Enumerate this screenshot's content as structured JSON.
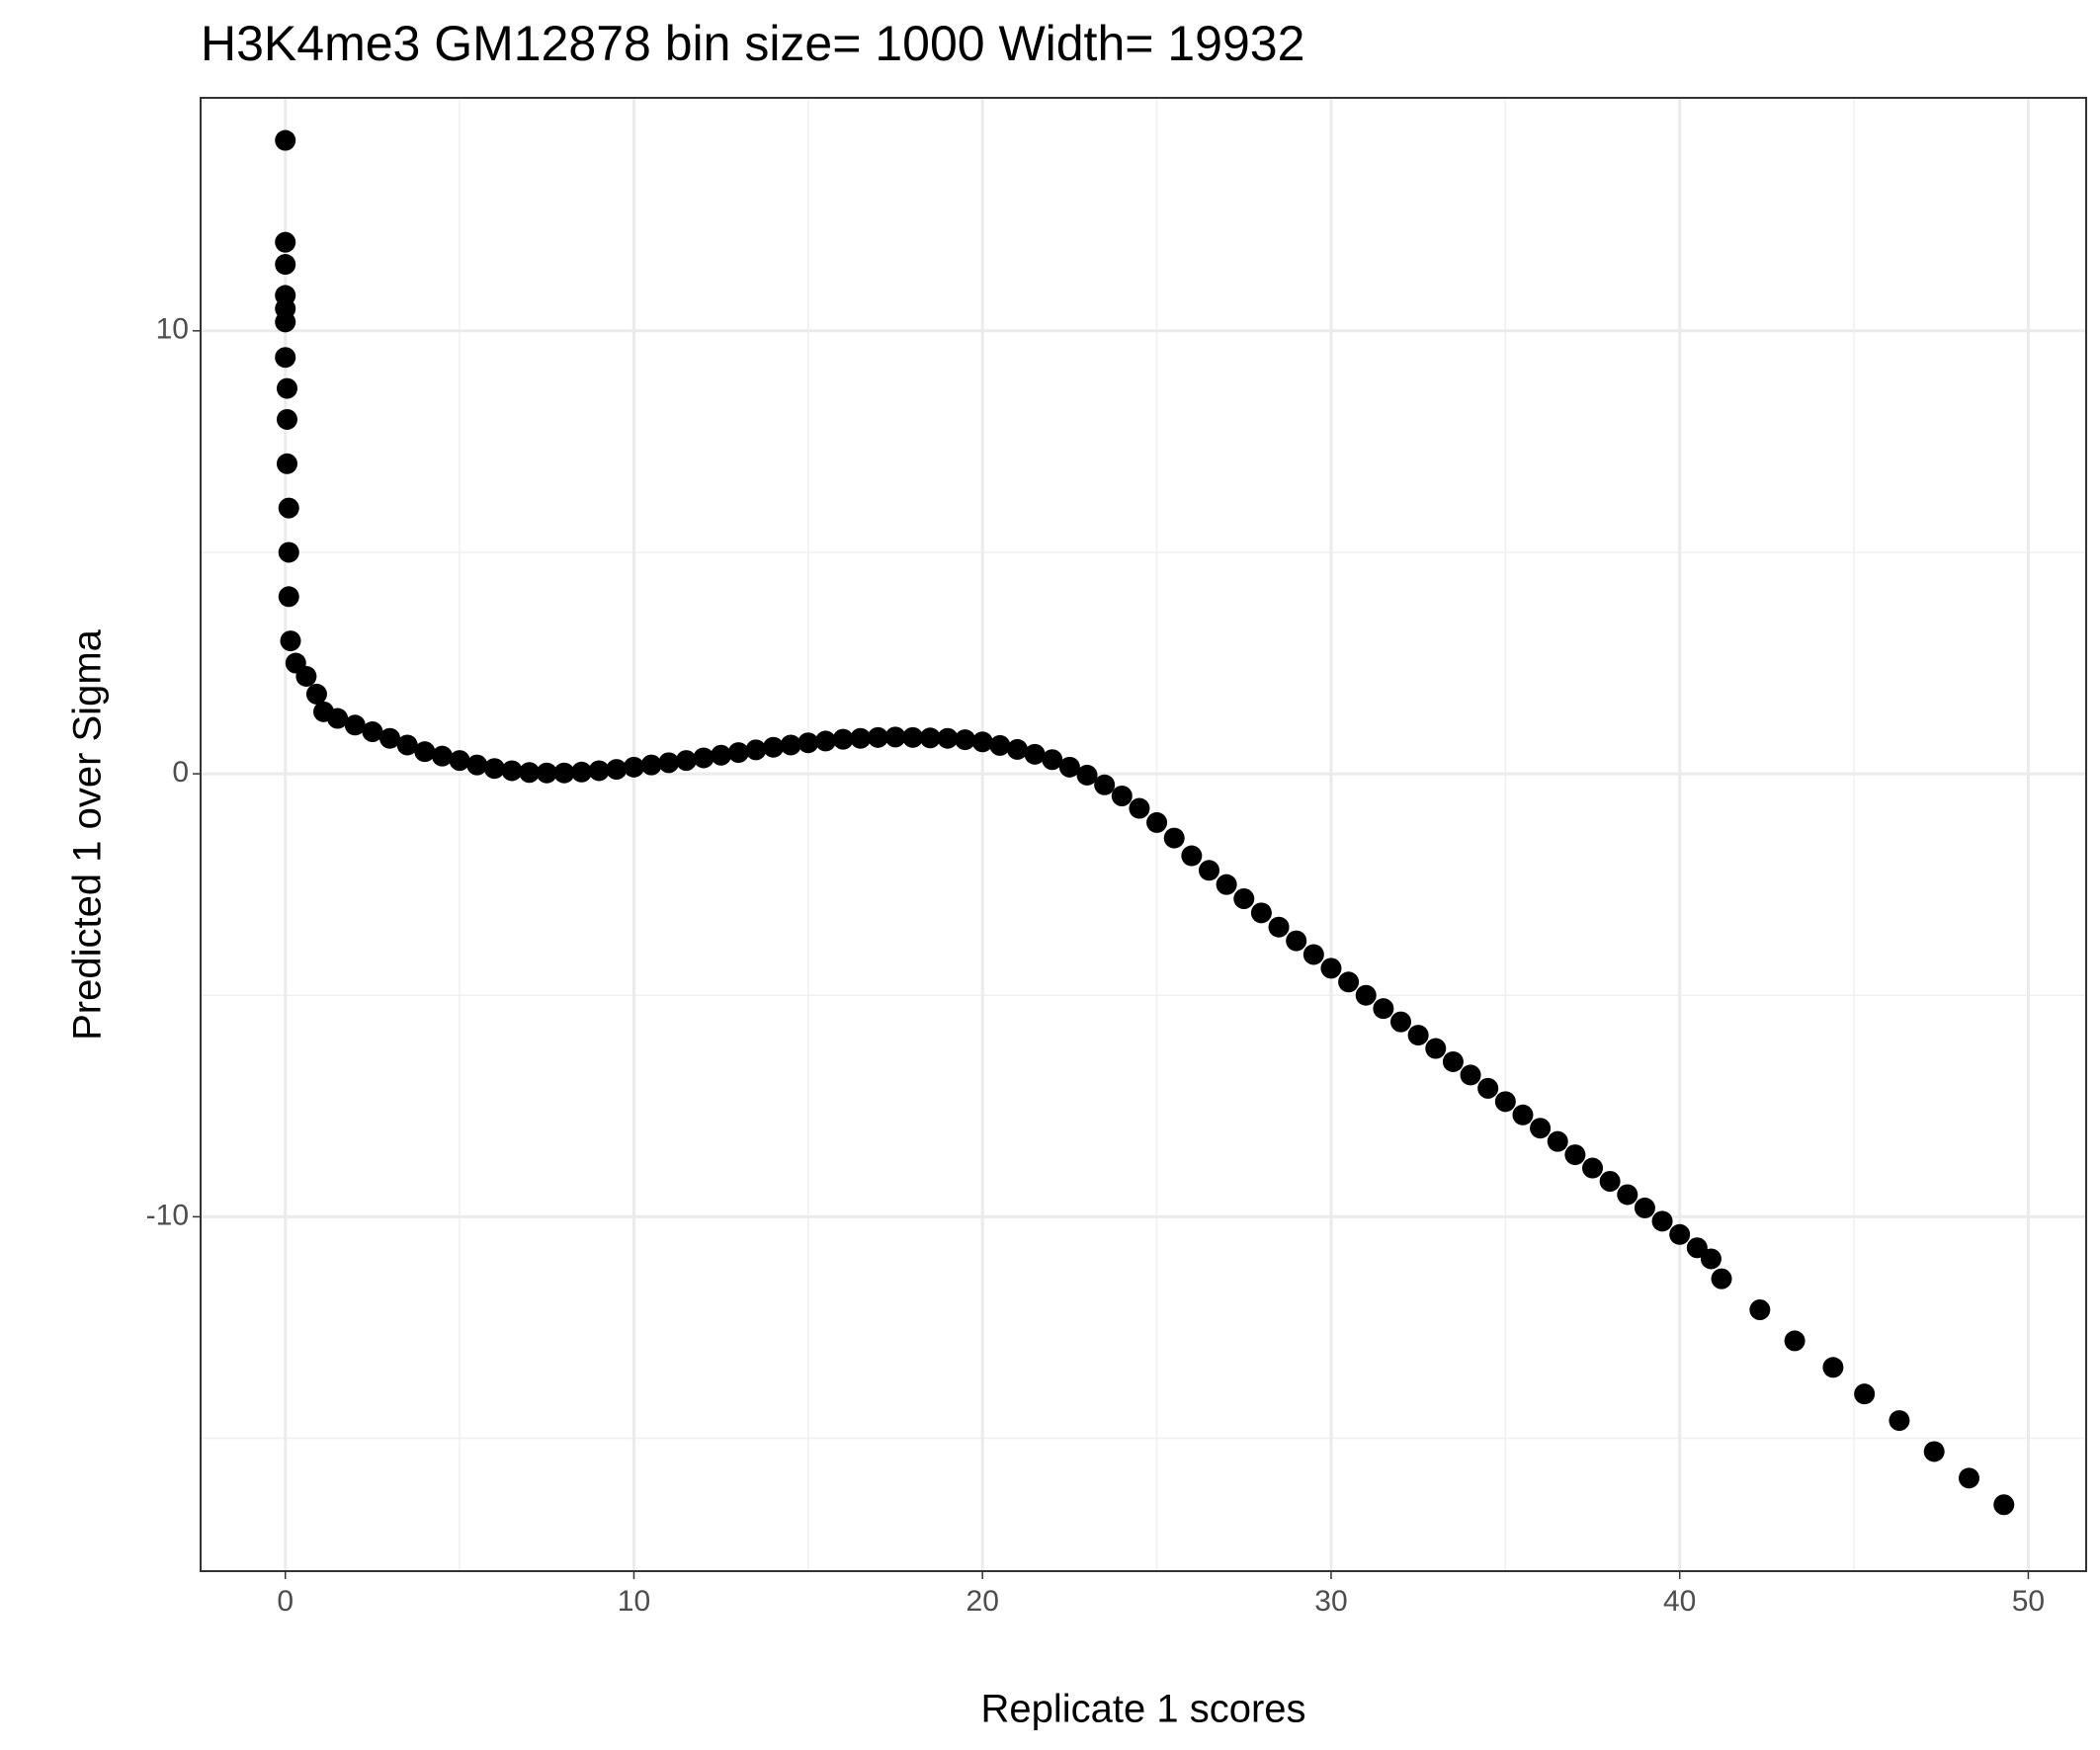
{
  "chart_data": {
    "type": "scatter",
    "title": "H3K4me3 GM12878  bin size=  1000  Width=  19932",
    "x_label": "Replicate 1 scores",
    "y_label": "Predicted 1 over Sigma",
    "color": "#000000",
    "grid": true,
    "xlim": [
      -2.43,
      51.66
    ],
    "ylim": [
      -18.0,
      15.26
    ],
    "xticks": [
      0,
      10,
      20,
      30,
      40,
      50
    ],
    "yticks": [
      -10,
      0,
      10
    ],
    "xminor": [
      5,
      15,
      25,
      35,
      45
    ],
    "yminor": [
      -15,
      -5,
      5
    ],
    "x": [
      0,
      0,
      0,
      0,
      0,
      0,
      0,
      0.05,
      0.05,
      0.05,
      0.1,
      0.1,
      0.1,
      0.15,
      0.3,
      0.6,
      0.9,
      1.1,
      1.5,
      2,
      2.5,
      3,
      3.5,
      4,
      4.5,
      5,
      5.5,
      6,
      6.5,
      7,
      7.5,
      8,
      8.5,
      9,
      9.5,
      10,
      10.5,
      11,
      11.5,
      12,
      12.5,
      13,
      13.5,
      14,
      14.5,
      15,
      15.5,
      16,
      16.5,
      17,
      17.5,
      18,
      18.5,
      19,
      19.5,
      20,
      20.5,
      21,
      21.5,
      22,
      22.5,
      23,
      23.5,
      24,
      24.5,
      25,
      25.5,
      26,
      26.5,
      27,
      27.5,
      28,
      28.5,
      29,
      29.5,
      30,
      30.5,
      31,
      31.5,
      32,
      32.5,
      33,
      33.5,
      34,
      34.5,
      35,
      35.5,
      36,
      36.5,
      37,
      37.5,
      38,
      38.5,
      39,
      39.5,
      40,
      40.5,
      40.9,
      41.2,
      42.3,
      43.3,
      44.4,
      45.3,
      46.3,
      47.3,
      48.3,
      49.3
    ],
    "y": [
      14.3,
      12.0,
      11.5,
      10.8,
      10.5,
      10.2,
      9.4,
      8.7,
      8.0,
      7.0,
      6.0,
      5.0,
      4.0,
      3.0,
      2.5,
      2.2,
      1.8,
      1.4,
      1.25,
      1.1,
      0.95,
      0.8,
      0.65,
      0.5,
      0.4,
      0.3,
      0.2,
      0.12,
      0.07,
      0.03,
      0.02,
      0.02,
      0.04,
      0.07,
      0.1,
      0.15,
      0.2,
      0.25,
      0.3,
      0.36,
      0.42,
      0.48,
      0.54,
      0.6,
      0.65,
      0.7,
      0.74,
      0.78,
      0.8,
      0.82,
      0.83,
      0.82,
      0.81,
      0.8,
      0.77,
      0.72,
      0.64,
      0.55,
      0.44,
      0.32,
      0.15,
      -0.03,
      -0.25,
      -0.5,
      -0.78,
      -1.1,
      -1.45,
      -1.85,
      -2.18,
      -2.5,
      -2.82,
      -3.14,
      -3.46,
      -3.77,
      -4.08,
      -4.39,
      -4.7,
      -5.0,
      -5.3,
      -5.6,
      -5.9,
      -6.2,
      -6.5,
      -6.8,
      -7.1,
      -7.4,
      -7.7,
      -8.0,
      -8.3,
      -8.6,
      -8.9,
      -9.2,
      -9.5,
      -9.8,
      -10.1,
      -10.4,
      -10.7,
      -10.95,
      -11.4,
      -12.1,
      -12.8,
      -13.4,
      -14.0,
      -14.6,
      -15.3,
      -15.9,
      -16.5
    ]
  }
}
